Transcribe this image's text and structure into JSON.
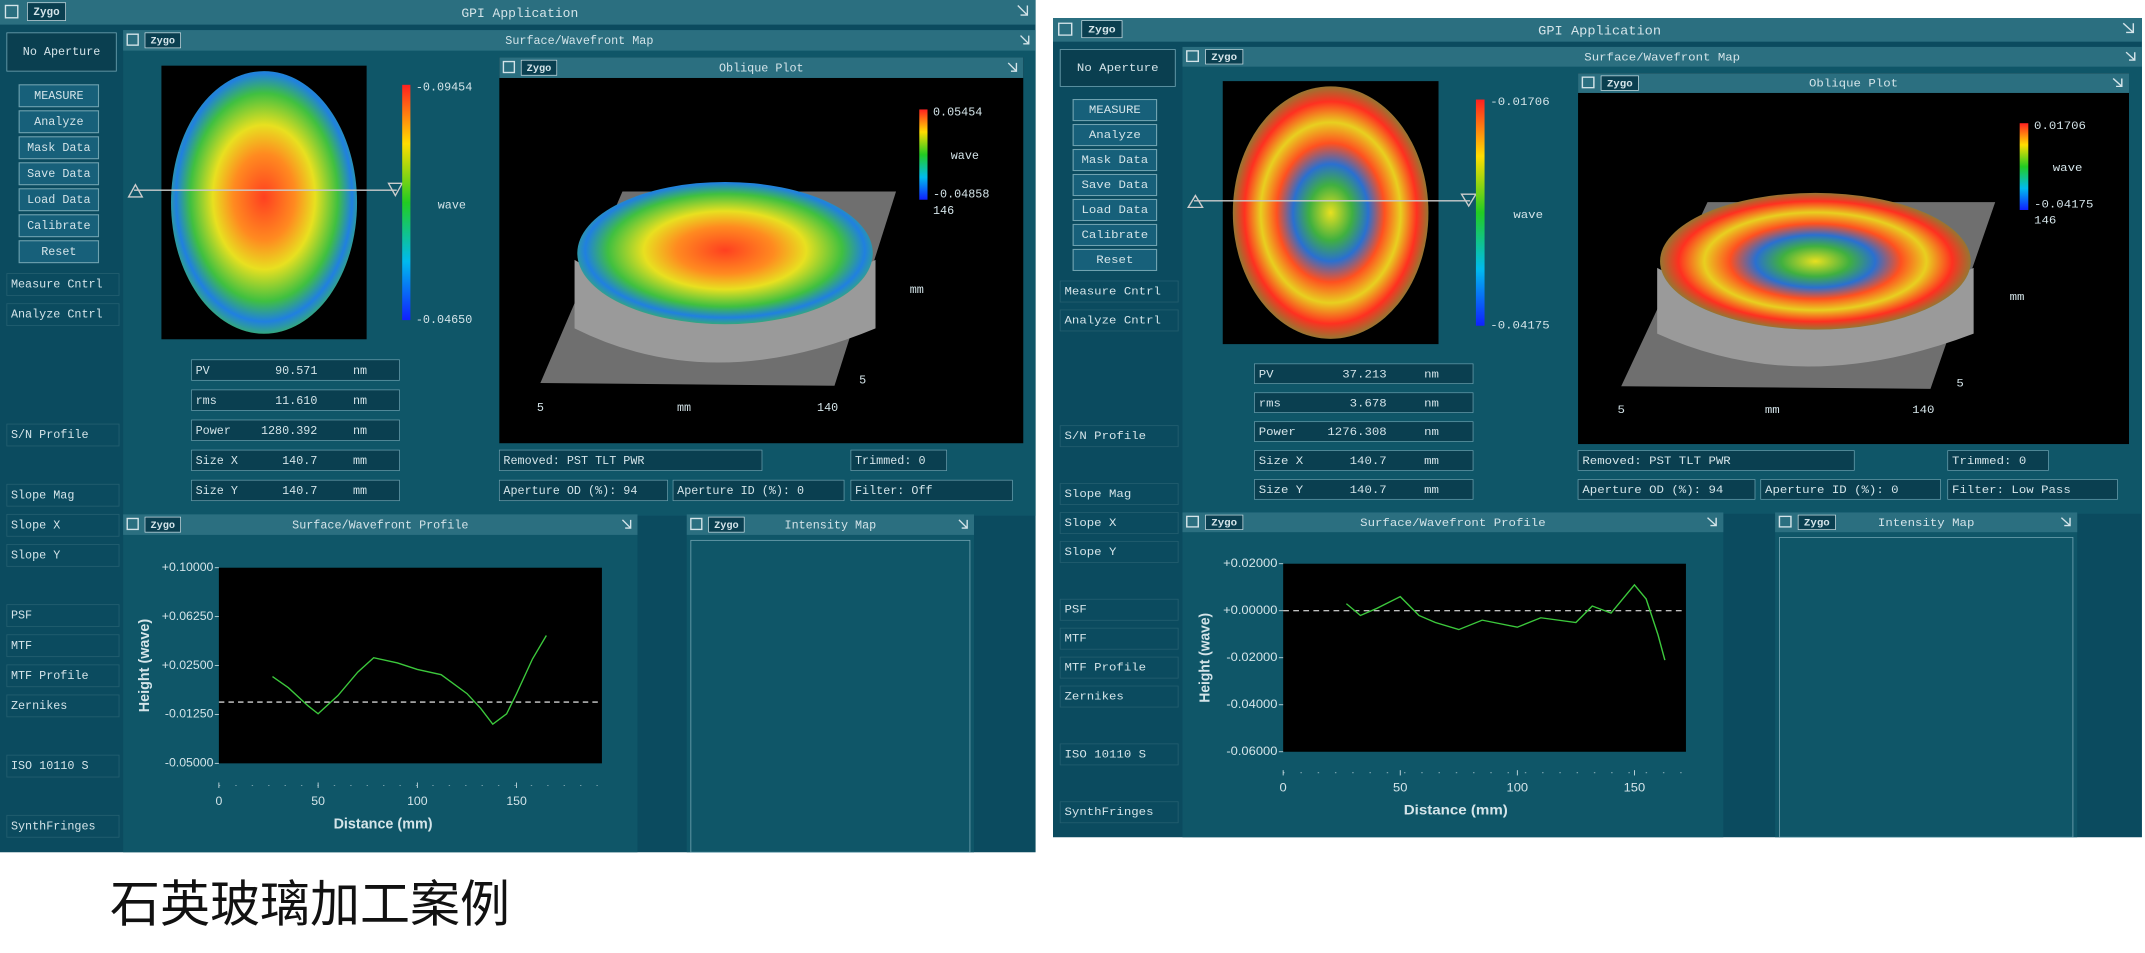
{
  "caption": "石英玻璃加工案例",
  "panels": [
    {
      "app_title": "GPI Application",
      "logo": "Zygo",
      "aperture": "No Aperture",
      "buttons": [
        "MEASURE",
        "Analyze",
        "Mask Data",
        "Save Data",
        "Load Data",
        "Calibrate",
        "Reset"
      ],
      "side_links": [
        "Measure Cntrl",
        "Analyze Cntrl",
        "S/N Profile",
        "Slope Mag",
        "Slope X",
        "Slope Y",
        "PSF",
        "MTF",
        "MTF Profile",
        "Zernikes",
        "ISO 10110 S",
        "SynthFringes"
      ],
      "surface_map": {
        "title": "Surface/Wavefront Map",
        "scale_max": "-0.09454",
        "scale_unit": "wave",
        "scale_min": "-0.04650"
      },
      "oblique": {
        "title": "Oblique Plot",
        "scale_max": "0.05454",
        "scale_unit": "wave",
        "scale_min": "-0.04858",
        "scale_extra": "146",
        "x_start": "5",
        "x_unit": "mm",
        "x_end": "140",
        "y_tick": "5",
        "y_unit": "mm"
      },
      "stats": [
        {
          "label": "PV",
          "value": "90.571",
          "unit": "nm"
        },
        {
          "label": "rms",
          "value": "11.610",
          "unit": "nm"
        },
        {
          "label": "Power",
          "value": "1280.392",
          "unit": "nm"
        },
        {
          "label": "Size X",
          "value": "140.7",
          "unit": "mm"
        },
        {
          "label": "Size Y",
          "value": "140.7",
          "unit": "mm"
        }
      ],
      "removed": "Removed: PST TLT PWR",
      "trimmed": "Trimmed: 0",
      "aperture_od": "Aperture OD (%): 94",
      "aperture_id": "Aperture ID (%): 0",
      "filter": "Filter: Off",
      "profile": {
        "chart_data": {
          "type": "line",
          "title": "Surface/Wavefront Profile",
          "xlabel": "Distance (mm)",
          "ylabel": "Height (wave)",
          "x": [
            27,
            35,
            45,
            50,
            60,
            70,
            78,
            90,
            100,
            112,
            125,
            132,
            138,
            145,
            150,
            158,
            165
          ],
          "values": [
            0.0165,
            0.008,
            -0.006,
            -0.012,
            0.002,
            0.02,
            0.031,
            0.027,
            0.022,
            0.018,
            0.0035,
            -0.008,
            -0.02,
            -0.012,
            0.0035,
            0.03,
            0.048
          ],
          "color": "#3cc83c",
          "reference_line": -0.003,
          "xlim": [
            0,
            193
          ],
          "ylim": [
            -0.05,
            0.1
          ],
          "xticks": [
            0,
            50,
            100,
            150
          ],
          "yticks": [
            {
              "value": 0.1,
              "label": "+0.10000"
            },
            {
              "value": 0.0625,
              "label": "+0.06250"
            },
            {
              "value": 0.025,
              "label": "+0.02500"
            },
            {
              "value": -0.0125,
              "label": "-0.01250"
            },
            {
              "value": -0.05,
              "label": "-0.05000"
            }
          ]
        }
      },
      "intensity_title": "Intensity Map"
    },
    {
      "app_title": "GPI Application",
      "logo": "Zygo",
      "aperture": "No Aperture",
      "buttons": [
        "MEASURE",
        "Analyze",
        "Mask Data",
        "Save Data",
        "Load Data",
        "Calibrate",
        "Reset"
      ],
      "side_links": [
        "Measure Cntrl",
        "Analyze Cntrl",
        "S/N Profile",
        "Slope Mag",
        "Slope X",
        "Slope Y",
        "PSF",
        "MTF",
        "MTF Profile",
        "Zernikes",
        "ISO 10110 S",
        "SynthFringes"
      ],
      "surface_map": {
        "title": "Surface/Wavefront Map",
        "scale_max": "-0.01706",
        "scale_unit": "wave",
        "scale_min": "-0.04175"
      },
      "oblique": {
        "title": "Oblique Plot",
        "scale_max": "0.01706",
        "scale_unit": "wave",
        "scale_min": "-0.04175",
        "scale_extra": "146",
        "x_start": "5",
        "x_unit": "mm",
        "x_end": "140",
        "y_tick": "5",
        "y_unit": "mm"
      },
      "stats": [
        {
          "label": "PV",
          "value": "37.213",
          "unit": "nm"
        },
        {
          "label": "rms",
          "value": "3.678",
          "unit": "nm"
        },
        {
          "label": "Power",
          "value": "1276.308",
          "unit": "nm"
        },
        {
          "label": "Size X",
          "value": "140.7",
          "unit": "mm"
        },
        {
          "label": "Size Y",
          "value": "140.7",
          "unit": "mm"
        }
      ],
      "removed": "Removed: PST TLT PWR",
      "trimmed": "Trimmed: 0",
      "aperture_od": "Aperture OD (%): 94",
      "aperture_id": "Aperture ID (%): 0",
      "filter": "Filter: Low Pass",
      "profile": {
        "chart_data": {
          "type": "line",
          "title": "Surface/Wavefront Profile",
          "xlabel": "Distance (mm)",
          "ylabel": "Height (wave)",
          "x": [
            27,
            33,
            40,
            50,
            58,
            65,
            75,
            85,
            100,
            110,
            125,
            132,
            140,
            150,
            155,
            160,
            163
          ],
          "values": [
            0.003,
            -0.002,
            0.001,
            0.006,
            -0.002,
            -0.005,
            -0.008,
            -0.004,
            -0.007,
            -0.003,
            -0.005,
            0.002,
            -0.001,
            0.011,
            0.005,
            -0.01,
            -0.021
          ],
          "color": "#3cc83c",
          "reference_line": 0,
          "xlim": [
            0,
            172
          ],
          "ylim": [
            -0.06,
            0.02
          ],
          "xticks": [
            0,
            50,
            100,
            150
          ],
          "yticks": [
            {
              "value": 0.02,
              "label": "+0.02000"
            },
            {
              "value": 0,
              "label": "+0.00000"
            },
            {
              "value": -0.02,
              "label": "-0.02000"
            },
            {
              "value": -0.04,
              "label": "-0.04000"
            },
            {
              "value": -0.06,
              "label": "-0.06000"
            }
          ]
        }
      },
      "intensity_title": "Intensity Map"
    }
  ]
}
